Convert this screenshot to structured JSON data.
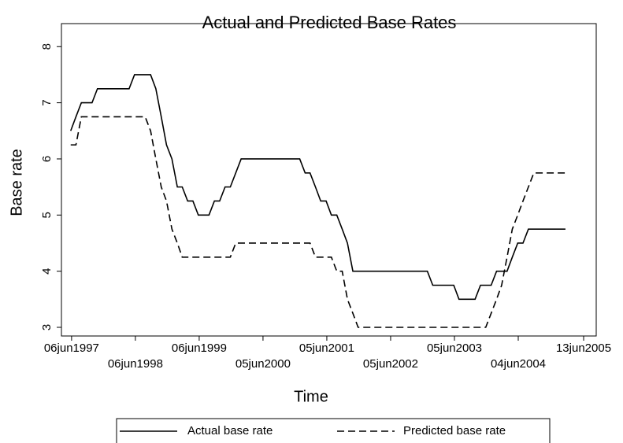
{
  "chart_data": {
    "type": "line",
    "title": "Actual and Predicted Base Rates",
    "x_label": "Time",
    "y_label": "Base rate",
    "x": [
      "1997-06",
      "1997-07",
      "1997-08",
      "1997-09",
      "1997-10",
      "1997-11",
      "1997-12",
      "1998-01",
      "1998-02",
      "1998-03",
      "1998-04",
      "1998-05",
      "1998-06",
      "1998-07",
      "1998-08",
      "1998-09",
      "1998-10",
      "1998-11",
      "1998-12",
      "1999-01",
      "1999-02",
      "1999-03",
      "1999-04",
      "1999-05",
      "1999-06",
      "1999-07",
      "1999-08",
      "1999-09",
      "1999-10",
      "1999-11",
      "1999-12",
      "2000-01",
      "2000-02",
      "2000-03",
      "2000-04",
      "2000-05",
      "2000-06",
      "2000-07",
      "2000-08",
      "2000-09",
      "2000-10",
      "2000-11",
      "2000-12",
      "2001-01",
      "2001-02",
      "2001-03",
      "2001-04",
      "2001-05",
      "2001-06",
      "2001-07",
      "2001-08",
      "2001-09",
      "2001-10",
      "2001-11",
      "2001-12",
      "2002-01",
      "2002-02",
      "2002-03",
      "2002-04",
      "2002-05",
      "2002-06",
      "2002-07",
      "2002-08",
      "2002-09",
      "2002-10",
      "2002-11",
      "2002-12",
      "2003-01",
      "2003-02",
      "2003-03",
      "2003-04",
      "2003-05",
      "2003-06",
      "2003-07",
      "2003-08",
      "2003-09",
      "2003-10",
      "2003-11",
      "2003-12",
      "2004-01",
      "2004-02",
      "2004-03",
      "2004-04",
      "2004-05",
      "2004-06",
      "2004-07",
      "2004-08",
      "2004-09",
      "2004-10",
      "2004-11",
      "2004-12",
      "2005-01",
      "2005-02",
      "2005-03"
    ],
    "series": [
      {
        "name": "Actual base rate",
        "color": "#000000",
        "dash": "solid",
        "values": [
          6.5,
          6.75,
          7.0,
          7.0,
          7.0,
          7.25,
          7.25,
          7.25,
          7.25,
          7.25,
          7.25,
          7.25,
          7.5,
          7.5,
          7.5,
          7.5,
          7.25,
          6.75,
          6.25,
          6.0,
          5.5,
          5.5,
          5.25,
          5.25,
          5.0,
          5.0,
          5.0,
          5.25,
          5.25,
          5.5,
          5.5,
          5.75,
          6.0,
          6.0,
          6.0,
          6.0,
          6.0,
          6.0,
          6.0,
          6.0,
          6.0,
          6.0,
          6.0,
          6.0,
          5.75,
          5.75,
          5.5,
          5.25,
          5.25,
          5.0,
          5.0,
          4.75,
          4.5,
          4.0,
          4.0,
          4.0,
          4.0,
          4.0,
          4.0,
          4.0,
          4.0,
          4.0,
          4.0,
          4.0,
          4.0,
          4.0,
          4.0,
          4.0,
          3.75,
          3.75,
          3.75,
          3.75,
          3.75,
          3.5,
          3.5,
          3.5,
          3.5,
          3.75,
          3.75,
          3.75,
          4.0,
          4.0,
          4.0,
          4.25,
          4.5,
          4.5,
          4.75,
          4.75,
          4.75,
          4.75,
          4.75,
          4.75,
          4.75,
          4.75
        ]
      },
      {
        "name": "Predicted base rate",
        "color": "#000000",
        "dash": "dashed",
        "values": [
          6.25,
          6.25,
          6.75,
          6.75,
          6.75,
          6.75,
          6.75,
          6.75,
          6.75,
          6.75,
          6.75,
          6.75,
          6.75,
          6.75,
          6.75,
          6.5,
          6.0,
          5.5,
          5.25,
          4.75,
          4.5,
          4.25,
          4.25,
          4.25,
          4.25,
          4.25,
          4.25,
          4.25,
          4.25,
          4.25,
          4.25,
          4.5,
          4.5,
          4.5,
          4.5,
          4.5,
          4.5,
          4.5,
          4.5,
          4.5,
          4.5,
          4.5,
          4.5,
          4.5,
          4.5,
          4.5,
          4.25,
          4.25,
          4.25,
          4.25,
          4.0,
          4.0,
          3.5,
          3.25,
          3.0,
          3.0,
          3.0,
          3.0,
          3.0,
          3.0,
          3.0,
          3.0,
          3.0,
          3.0,
          3.0,
          3.0,
          3.0,
          3.0,
          3.0,
          3.0,
          3.0,
          3.0,
          3.0,
          3.0,
          3.0,
          3.0,
          3.0,
          3.0,
          3.0,
          3.25,
          3.5,
          3.75,
          4.25,
          4.75,
          5.0,
          5.25,
          5.5,
          5.75,
          5.75,
          5.75,
          5.75,
          5.75,
          5.75,
          5.75
        ]
      }
    ],
    "xlim": [
      "1997-04-09",
      "2005-08-24"
    ],
    "xticks": [
      {
        "value": "1997-06-06",
        "label": "06jun1997"
      },
      {
        "value": "1998-06-06",
        "label": "06jun1998"
      },
      {
        "value": "1999-06-06",
        "label": "06jun1999"
      },
      {
        "value": "2000-06-05",
        "label": "05jun2000"
      },
      {
        "value": "2001-06-05",
        "label": "05jun2001"
      },
      {
        "value": "2002-06-05",
        "label": "05jun2002"
      },
      {
        "value": "2003-06-05",
        "label": "05jun2003"
      },
      {
        "value": "2004-06-04",
        "label": "04jun2004"
      },
      {
        "value": "2005-06-13",
        "label": "13jun2005"
      }
    ],
    "ylim": [
      2.846,
      8.41
    ],
    "yticks": [
      3,
      4,
      5,
      6,
      7,
      8
    ],
    "grid": false,
    "legend": "bottom"
  }
}
